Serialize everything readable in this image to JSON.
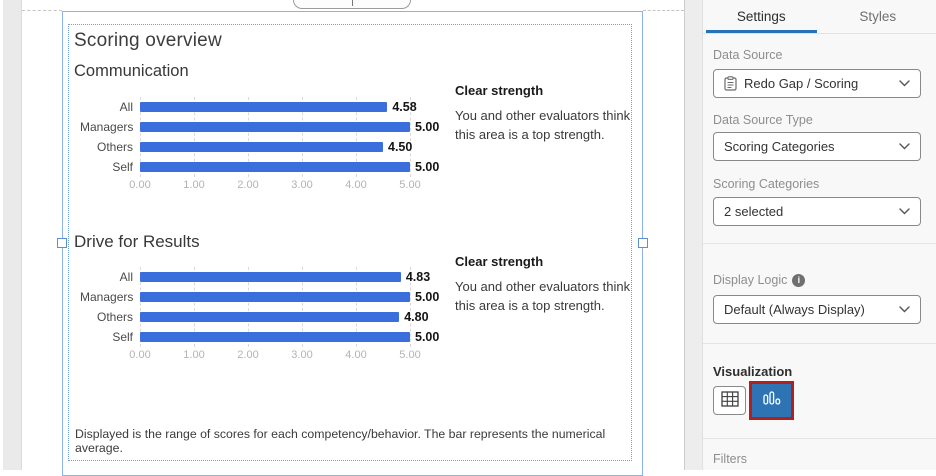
{
  "canvas": {
    "title": "Scoring overview",
    "footer": "Displayed is the range of scores for each competency/behavior. The bar represents the numerical average.",
    "charts": [
      {
        "type": "bar",
        "heading": "Communication",
        "categories": [
          "All",
          "Managers",
          "Others",
          "Self"
        ],
        "values": [
          4.58,
          5.0,
          4.5,
          5.0
        ],
        "value_labels": [
          "4.58",
          "5.00",
          "4.50",
          "5.00"
        ],
        "ticks": [
          "0.00",
          "1.00",
          "2.00",
          "3.00",
          "4.00",
          "5.00"
        ],
        "xlim": [
          0,
          5
        ],
        "callout": {
          "title": "Clear strength",
          "body": "You and other evaluators think this area is a top strength."
        }
      },
      {
        "type": "bar",
        "heading": "Drive for Results",
        "categories": [
          "All",
          "Managers",
          "Others",
          "Self"
        ],
        "values": [
          4.83,
          5.0,
          4.8,
          5.0
        ],
        "value_labels": [
          "4.83",
          "5.00",
          "4.80",
          "5.00"
        ],
        "ticks": [
          "0.00",
          "1.00",
          "2.00",
          "3.00",
          "4.00",
          "5.00"
        ],
        "xlim": [
          0,
          5
        ],
        "callout": {
          "title": "Clear strength",
          "body": "You and other evaluators think this area is a top strength."
        }
      }
    ]
  },
  "panel": {
    "tabs": [
      {
        "label": "Settings",
        "active": true
      },
      {
        "label": "Styles",
        "active": false
      }
    ],
    "fields": [
      {
        "label": "Data Source",
        "value": "Redo Gap / Scoring",
        "icon": "clipboard-icon"
      },
      {
        "label": "Data Source Type",
        "value": "Scoring Categories"
      },
      {
        "label": "Scoring Categories",
        "value": "2 selected"
      },
      {
        "label": "Display Logic",
        "value": "Default (Always Display)",
        "info": true
      }
    ],
    "info_icon_glyph": "i",
    "visualization": {
      "label": "Visualization",
      "options": [
        {
          "name": "table",
          "icon": "table-icon",
          "selected": false
        },
        {
          "name": "bar-chart",
          "icon": "bar-chart-icon",
          "selected": true,
          "highlighted": true
        }
      ]
    },
    "filters_label": "Filters"
  },
  "colors": {
    "bar_blue": "#3a6edd",
    "selection_blue": "#6f9fe0",
    "tab_underline_blue": "#2472ba",
    "viz_selected_blue": "#2e74b4",
    "highlight_red": "#b02020"
  }
}
